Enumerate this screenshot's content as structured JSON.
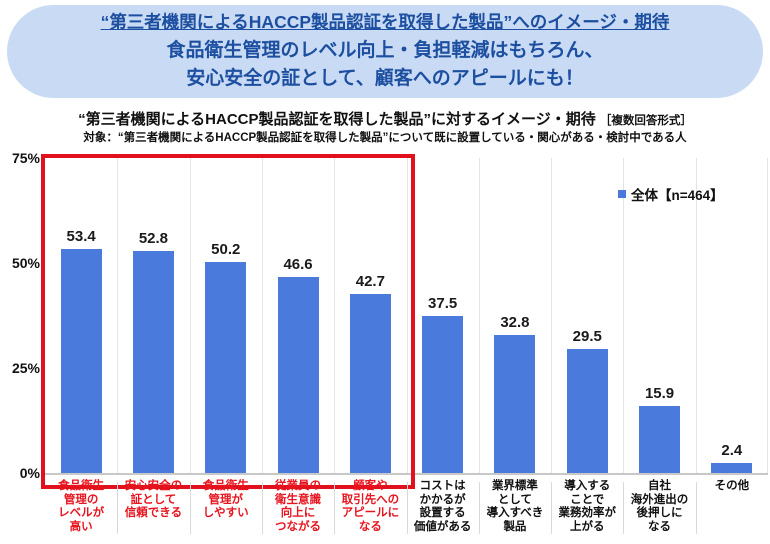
{
  "banner": {
    "line1": "“第三者機関によるHACCP製品認証を取得した製品”へのイメージ・期待",
    "line2": "食品衛生管理のレベル向上・負担軽減はもちろん、",
    "line3": "安心安全の証として、顧客へのアピールにも！",
    "bg_color": "#c9dbf4",
    "text_color": "#1d4fa1"
  },
  "chart_title": {
    "main": "“第三者機関によるHACCP製品認証を取得した製品”に対するイメージ・期待",
    "note": "［複数回答形式］",
    "subtitle": "対象：“第三者機関によるHACCP製品認証を取得した製品”について既に設置している・関心がある・検討中である人"
  },
  "legend": {
    "label": "全体【n=464】"
  },
  "chart_data": {
    "type": "bar",
    "title": "“第三者機関によるHACCP製品認証を取得した製品”に対するイメージ・期待",
    "series_name": "全体【n=464】",
    "categories": [
      [
        "食品衛生",
        "管理の",
        "レベルが",
        "高い"
      ],
      [
        "安心安全の",
        "証として",
        "信頼できる"
      ],
      [
        "食品衛生",
        "管理が",
        "しやすい"
      ],
      [
        "従業員の",
        "衛生意識",
        "向上に",
        "つながる"
      ],
      [
        "顧客や",
        "取引先への",
        "アピールに",
        "なる"
      ],
      [
        "コストは",
        "かかるが",
        "設置する",
        "価値がある"
      ],
      [
        "業界標準",
        "として",
        "導入すべき",
        "製品"
      ],
      [
        "導入する",
        "ことで",
        "業務効率が",
        "上がる"
      ],
      [
        "自社",
        "海外進出の",
        "後押しに",
        "なる"
      ],
      [
        "その他"
      ]
    ],
    "values": [
      53.4,
      52.8,
      50.2,
      46.6,
      42.7,
      37.5,
      32.8,
      29.5,
      15.9,
      2.4
    ],
    "xlabel": "",
    "ylabel": "",
    "ylim": [
      0,
      75
    ],
    "yticks": [
      {
        "label": "75%",
        "value": 75
      },
      {
        "label": "50%",
        "value": 50
      },
      {
        "label": "25%",
        "value": 25
      },
      {
        "label": "0%",
        "value": 0
      }
    ],
    "grid": "vertical-only",
    "legend_position": "top-right",
    "highlight_first_n": 5,
    "bar_color": "#4a7bdc",
    "highlight_box_color": "#e0101c",
    "label_color_highlight": "#e8141e",
    "label_color_default": "#111111"
  }
}
